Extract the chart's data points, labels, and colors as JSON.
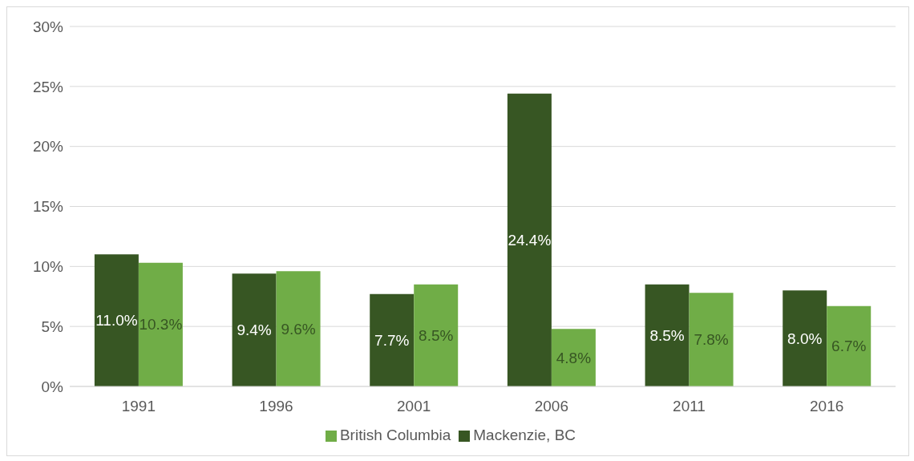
{
  "chart_data": {
    "type": "bar",
    "categories": [
      "1991",
      "1996",
      "2001",
      "2006",
      "2011",
      "2016"
    ],
    "series": [
      {
        "name": "Mackenzie, BC",
        "color": "#375623",
        "values": [
          11.0,
          9.4,
          7.7,
          24.4,
          8.5,
          8.0
        ],
        "value_labels": [
          "11.0%",
          "9.4%",
          "7.7%",
          "24.4%",
          "8.5%",
          "8.0%"
        ]
      },
      {
        "name": "British Columbia",
        "color": "#70ad47",
        "values": [
          10.3,
          9.6,
          8.5,
          4.8,
          7.8,
          6.7
        ],
        "value_labels": [
          "10.3%",
          "9.6%",
          "8.5%",
          "4.8%",
          "7.8%",
          "6.7%"
        ]
      }
    ],
    "ylim": [
      0,
      30
    ],
    "yticks": [
      {
        "value": 0,
        "label": "0%"
      },
      {
        "value": 5,
        "label": "5%"
      },
      {
        "value": 10,
        "label": "10%"
      },
      {
        "value": 15,
        "label": "15%"
      },
      {
        "value": 20,
        "label": "20%"
      },
      {
        "value": 25,
        "label": "25%"
      },
      {
        "value": 30,
        "label": "30%"
      }
    ],
    "grid": "y",
    "legend": "bottom"
  }
}
